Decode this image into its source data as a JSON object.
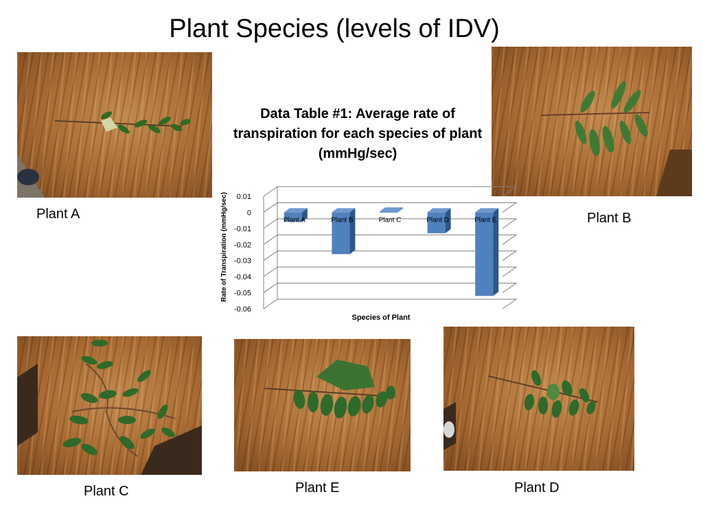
{
  "slide": {
    "title": "Plant Species (levels of IDV)"
  },
  "photos": [
    {
      "id": "a",
      "label": "Plant A"
    },
    {
      "id": "b",
      "label": "Plant B"
    },
    {
      "id": "c",
      "label": "Plant C"
    },
    {
      "id": "e",
      "label": "Plant E"
    },
    {
      "id": "d",
      "label": "Plant D"
    }
  ],
  "colors": {
    "bar": "#4f81bd",
    "bar_side": "#2c5787",
    "bar_top": "#6d98cf",
    "grid": "#7f7f7f"
  },
  "chart_data": {
    "type": "bar",
    "title": "Data Table #1: Average rate of transpiration for each species of plant (mmHg/sec)",
    "categories": [
      "Plant A",
      "Plant B",
      "Plant C",
      "Plant D",
      "Plant E"
    ],
    "values": [
      -0.006,
      -0.026,
      0.0005,
      -0.013,
      -0.052
    ],
    "xlabel": "Species of Plant",
    "ylabel": "Rate of Transpiration (mmHg/sec)",
    "ylim": [
      -0.06,
      0.01
    ],
    "yticks": [
      "0.01",
      "0",
      "-0.01",
      "-0.02",
      "-0.03",
      "-0.04",
      "-0.05",
      "-0.06"
    ],
    "grid": true,
    "style": "3d"
  }
}
